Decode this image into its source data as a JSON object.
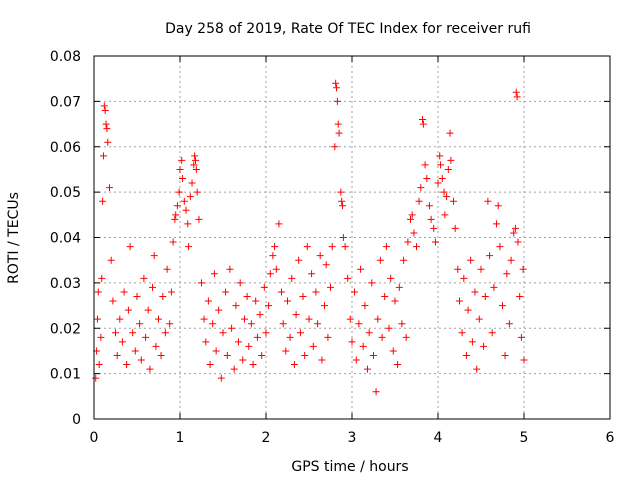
{
  "chart_data": {
    "type": "scatter",
    "title": "Day 258 of 2019, Rate Of TEC Index for receiver rufi",
    "xlabel": "GPS time / hours",
    "ylabel": "ROTI / TECUs",
    "xlim": [
      0,
      6
    ],
    "ylim": [
      0,
      0.08
    ],
    "x_ticks": [
      0,
      1,
      2,
      3,
      4,
      5,
      6
    ],
    "x_tick_labels": [
      "0",
      "1",
      "2",
      "3",
      "4",
      "5",
      "6"
    ],
    "y_ticks": [
      0,
      0.01,
      0.02,
      0.03,
      0.04,
      0.05,
      0.06,
      0.07,
      0.08
    ],
    "y_tick_labels": [
      "0",
      "0.01",
      "0.02",
      "0.03",
      "0.04",
      "0.05",
      "0.06",
      "0.07",
      "0.08"
    ],
    "grid": true,
    "marker": "+",
    "marker_color": "#ff0000",
    "series": [
      {
        "name": "ROTI",
        "points": [
          [
            0.02,
            0.009
          ],
          [
            0.03,
            0.015
          ],
          [
            0.04,
            0.022
          ],
          [
            0.05,
            0.028
          ],
          [
            0.06,
            0.012
          ],
          [
            0.08,
            0.018
          ],
          [
            0.09,
            0.031
          ],
          [
            0.1,
            0.048
          ],
          [
            0.11,
            0.058
          ],
          [
            0.12,
            0.069
          ],
          [
            0.13,
            0.068
          ],
          [
            0.14,
            0.065
          ],
          [
            0.15,
            0.064
          ],
          [
            0.16,
            0.061
          ],
          [
            0.18,
            0.051
          ],
          [
            0.2,
            0.035
          ],
          [
            0.22,
            0.026
          ],
          [
            0.25,
            0.019
          ],
          [
            0.27,
            0.014
          ],
          [
            0.3,
            0.022
          ],
          [
            0.33,
            0.017
          ],
          [
            0.35,
            0.028
          ],
          [
            0.38,
            0.012
          ],
          [
            0.4,
            0.024
          ],
          [
            0.42,
            0.038
          ],
          [
            0.45,
            0.019
          ],
          [
            0.48,
            0.015
          ],
          [
            0.5,
            0.027
          ],
          [
            0.53,
            0.021
          ],
          [
            0.55,
            0.013
          ],
          [
            0.58,
            0.031
          ],
          [
            0.6,
            0.018
          ],
          [
            0.63,
            0.024
          ],
          [
            0.65,
            0.011
          ],
          [
            0.68,
            0.029
          ],
          [
            0.7,
            0.036
          ],
          [
            0.72,
            0.016
          ],
          [
            0.75,
            0.022
          ],
          [
            0.78,
            0.014
          ],
          [
            0.8,
            0.027
          ],
          [
            0.83,
            0.019
          ],
          [
            0.85,
            0.033
          ],
          [
            0.88,
            0.021
          ],
          [
            0.9,
            0.028
          ],
          [
            0.92,
            0.039
          ],
          [
            0.94,
            0.044
          ],
          [
            0.95,
            0.045
          ],
          [
            0.97,
            0.047
          ],
          [
            0.99,
            0.05
          ],
          [
            1.0,
            0.055
          ],
          [
            1.02,
            0.057
          ],
          [
            1.03,
            0.053
          ],
          [
            1.05,
            0.048
          ],
          [
            1.07,
            0.046
          ],
          [
            1.09,
            0.043
          ],
          [
            1.1,
            0.038
          ],
          [
            1.12,
            0.049
          ],
          [
            1.14,
            0.052
          ],
          [
            1.16,
            0.056
          ],
          [
            1.17,
            0.058
          ],
          [
            1.18,
            0.057
          ],
          [
            1.19,
            0.055
          ],
          [
            1.2,
            0.05
          ],
          [
            1.22,
            0.044
          ],
          [
            1.25,
            0.03
          ],
          [
            1.28,
            0.022
          ],
          [
            1.3,
            0.017
          ],
          [
            1.33,
            0.026
          ],
          [
            1.35,
            0.012
          ],
          [
            1.38,
            0.021
          ],
          [
            1.4,
            0.032
          ],
          [
            1.42,
            0.015
          ],
          [
            1.45,
            0.024
          ],
          [
            1.48,
            0.009
          ],
          [
            1.5,
            0.019
          ],
          [
            1.53,
            0.028
          ],
          [
            1.55,
            0.014
          ],
          [
            1.58,
            0.033
          ],
          [
            1.6,
            0.02
          ],
          [
            1.63,
            0.011
          ],
          [
            1.65,
            0.025
          ],
          [
            1.68,
            0.017
          ],
          [
            1.7,
            0.03
          ],
          [
            1.73,
            0.013
          ],
          [
            1.75,
            0.022
          ],
          [
            1.78,
            0.027
          ],
          [
            1.8,
            0.016
          ],
          [
            1.83,
            0.021
          ],
          [
            1.85,
            0.012
          ],
          [
            1.88,
            0.026
          ],
          [
            1.9,
            0.018
          ],
          [
            1.93,
            0.023
          ],
          [
            1.95,
            0.014
          ],
          [
            1.98,
            0.029
          ],
          [
            2.0,
            0.019
          ],
          [
            2.03,
            0.025
          ],
          [
            2.05,
            0.032
          ],
          [
            2.08,
            0.036
          ],
          [
            2.1,
            0.038
          ],
          [
            2.12,
            0.033
          ],
          [
            2.15,
            0.043
          ],
          [
            2.18,
            0.028
          ],
          [
            2.2,
            0.021
          ],
          [
            2.23,
            0.015
          ],
          [
            2.25,
            0.026
          ],
          [
            2.28,
            0.018
          ],
          [
            2.3,
            0.031
          ],
          [
            2.33,
            0.012
          ],
          [
            2.35,
            0.023
          ],
          [
            2.38,
            0.035
          ],
          [
            2.4,
            0.019
          ],
          [
            2.43,
            0.027
          ],
          [
            2.45,
            0.014
          ],
          [
            2.48,
            0.038
          ],
          [
            2.5,
            0.022
          ],
          [
            2.53,
            0.032
          ],
          [
            2.55,
            0.016
          ],
          [
            2.58,
            0.028
          ],
          [
            2.6,
            0.021
          ],
          [
            2.63,
            0.036
          ],
          [
            2.65,
            0.013
          ],
          [
            2.68,
            0.025
          ],
          [
            2.7,
            0.034
          ],
          [
            2.72,
            0.018
          ],
          [
            2.75,
            0.029
          ],
          [
            2.77,
            0.038
          ],
          [
            2.8,
            0.06
          ],
          [
            2.81,
            0.074
          ],
          [
            2.82,
            0.073
          ],
          [
            2.83,
            0.07
          ],
          [
            2.84,
            0.065
          ],
          [
            2.85,
            0.063
          ],
          [
            2.87,
            0.05
          ],
          [
            2.88,
            0.048
          ],
          [
            2.89,
            0.047
          ],
          [
            2.9,
            0.04
          ],
          [
            2.92,
            0.038
          ],
          [
            2.95,
            0.031
          ],
          [
            2.98,
            0.022
          ],
          [
            3.0,
            0.017
          ],
          [
            3.03,
            0.028
          ],
          [
            3.05,
            0.013
          ],
          [
            3.08,
            0.021
          ],
          [
            3.1,
            0.033
          ],
          [
            3.13,
            0.016
          ],
          [
            3.15,
            0.025
          ],
          [
            3.18,
            0.011
          ],
          [
            3.2,
            0.019
          ],
          [
            3.23,
            0.03
          ],
          [
            3.25,
            0.014
          ],
          [
            3.28,
            0.006
          ],
          [
            3.3,
            0.022
          ],
          [
            3.33,
            0.035
          ],
          [
            3.35,
            0.018
          ],
          [
            3.38,
            0.027
          ],
          [
            3.4,
            0.038
          ],
          [
            3.43,
            0.02
          ],
          [
            3.45,
            0.031
          ],
          [
            3.48,
            0.015
          ],
          [
            3.5,
            0.026
          ],
          [
            3.53,
            0.012
          ],
          [
            3.55,
            0.029
          ],
          [
            3.58,
            0.021
          ],
          [
            3.6,
            0.035
          ],
          [
            3.63,
            0.018
          ],
          [
            3.65,
            0.039
          ],
          [
            3.68,
            0.044
          ],
          [
            3.7,
            0.045
          ],
          [
            3.72,
            0.041
          ],
          [
            3.75,
            0.038
          ],
          [
            3.78,
            0.048
          ],
          [
            3.8,
            0.051
          ],
          [
            3.82,
            0.066
          ],
          [
            3.83,
            0.065
          ],
          [
            3.85,
            0.056
          ],
          [
            3.87,
            0.053
          ],
          [
            3.9,
            0.047
          ],
          [
            3.92,
            0.044
          ],
          [
            3.95,
            0.042
          ],
          [
            3.97,
            0.039
          ],
          [
            4.0,
            0.052
          ],
          [
            4.02,
            0.058
          ],
          [
            4.03,
            0.056
          ],
          [
            4.05,
            0.053
          ],
          [
            4.07,
            0.05
          ],
          [
            4.08,
            0.045
          ],
          [
            4.1,
            0.049
          ],
          [
            4.12,
            0.055
          ],
          [
            4.14,
            0.063
          ],
          [
            4.15,
            0.057
          ],
          [
            4.18,
            0.048
          ],
          [
            4.2,
            0.042
          ],
          [
            4.23,
            0.033
          ],
          [
            4.25,
            0.026
          ],
          [
            4.28,
            0.019
          ],
          [
            4.3,
            0.031
          ],
          [
            4.33,
            0.014
          ],
          [
            4.35,
            0.024
          ],
          [
            4.38,
            0.035
          ],
          [
            4.4,
            0.017
          ],
          [
            4.43,
            0.028
          ],
          [
            4.45,
            0.011
          ],
          [
            4.48,
            0.022
          ],
          [
            4.5,
            0.033
          ],
          [
            4.53,
            0.016
          ],
          [
            4.55,
            0.027
          ],
          [
            4.58,
            0.048
          ],
          [
            4.6,
            0.036
          ],
          [
            4.63,
            0.019
          ],
          [
            4.65,
            0.029
          ],
          [
            4.68,
            0.043
          ],
          [
            4.7,
            0.047
          ],
          [
            4.72,
            0.038
          ],
          [
            4.75,
            0.025
          ],
          [
            4.78,
            0.014
          ],
          [
            4.8,
            0.032
          ],
          [
            4.83,
            0.021
          ],
          [
            4.85,
            0.035
          ],
          [
            4.88,
            0.041
          ],
          [
            4.9,
            0.042
          ],
          [
            4.91,
            0.072
          ],
          [
            4.92,
            0.071
          ],
          [
            4.93,
            0.039
          ],
          [
            4.95,
            0.027
          ],
          [
            4.97,
            0.018
          ],
          [
            4.99,
            0.033
          ],
          [
            5.0,
            0.013
          ]
        ]
      }
    ]
  }
}
